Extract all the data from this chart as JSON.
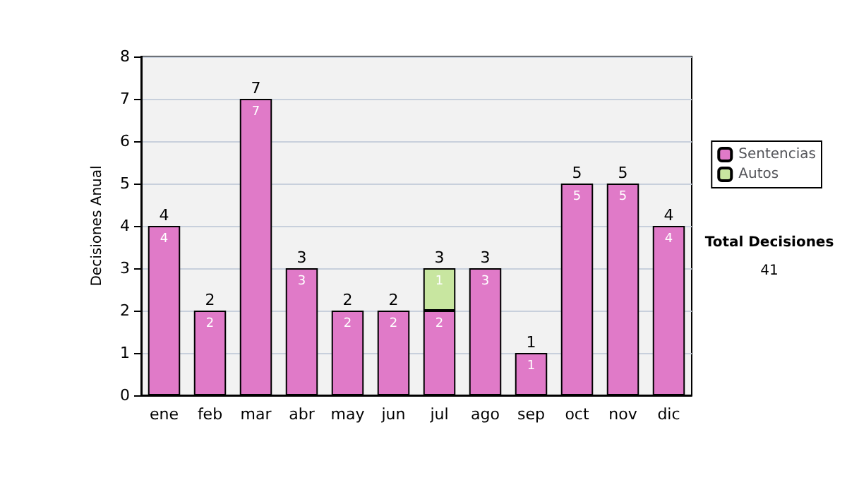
{
  "chart_data": {
    "type": "bar",
    "stacked": true,
    "ylabel": "Decisiones Anual",
    "categories": [
      "ene",
      "feb",
      "mar",
      "abr",
      "may",
      "jun",
      "jul",
      "ago",
      "sep",
      "oct",
      "nov",
      "dic"
    ],
    "series": [
      {
        "name": "Sentencias",
        "color": "#e07ac8",
        "values": [
          4,
          2,
          7,
          3,
          2,
          2,
          2,
          3,
          1,
          5,
          5,
          4
        ]
      },
      {
        "name": "Autos",
        "color": "#c8e6a0",
        "values": [
          null,
          null,
          null,
          null,
          null,
          null,
          1,
          null,
          null,
          null,
          null,
          null
        ]
      }
    ],
    "data_labels": true,
    "totals": [
      "4",
      "2",
      "7",
      "3",
      "2",
      "2",
      "3",
      "3",
      "1",
      "5",
      "5",
      "4"
    ],
    "ylim": [
      0,
      8
    ],
    "yticks": [
      0,
      1,
      2,
      3,
      4,
      5,
      6,
      7,
      8
    ],
    "grid": "y",
    "legend": "right",
    "annotations": [
      "Total Decisiones",
      "41"
    ]
  }
}
